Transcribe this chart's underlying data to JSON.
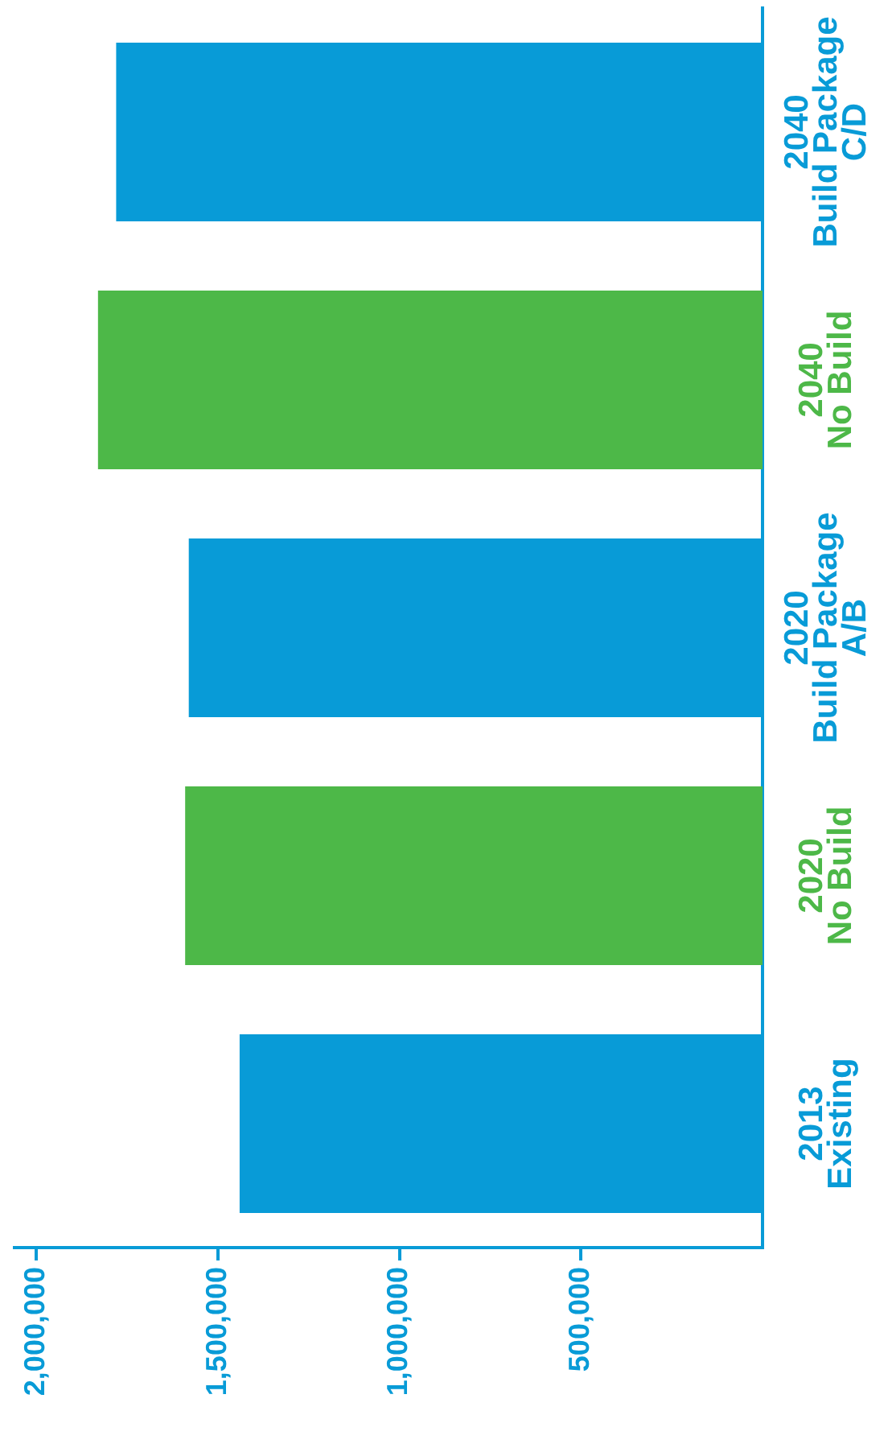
{
  "chart_data": {
    "type": "bar",
    "orientation": "horizontal",
    "categories": [
      "2040\nBuild Package\nC/D",
      "2040\nNo Build",
      "2020\nBuild Package\nA/B",
      "2020\nNo Build",
      "2013\nExisting"
    ],
    "values": [
      1780000,
      1830000,
      1580000,
      1590000,
      1440000
    ],
    "colors": [
      "#089bd7",
      "#4db848",
      "#089bd7",
      "#4db848",
      "#089bd7"
    ],
    "xlim": [
      2060000,
      0
    ],
    "xticks": [
      {
        "value": 2000000,
        "label": "2,000,000"
      },
      {
        "value": 1500000,
        "label": "1,500,000"
      },
      {
        "value": 1000000,
        "label": "1,000,000"
      },
      {
        "value": 500000,
        "label": "500,000"
      }
    ],
    "grid": false,
    "legend": false
  }
}
